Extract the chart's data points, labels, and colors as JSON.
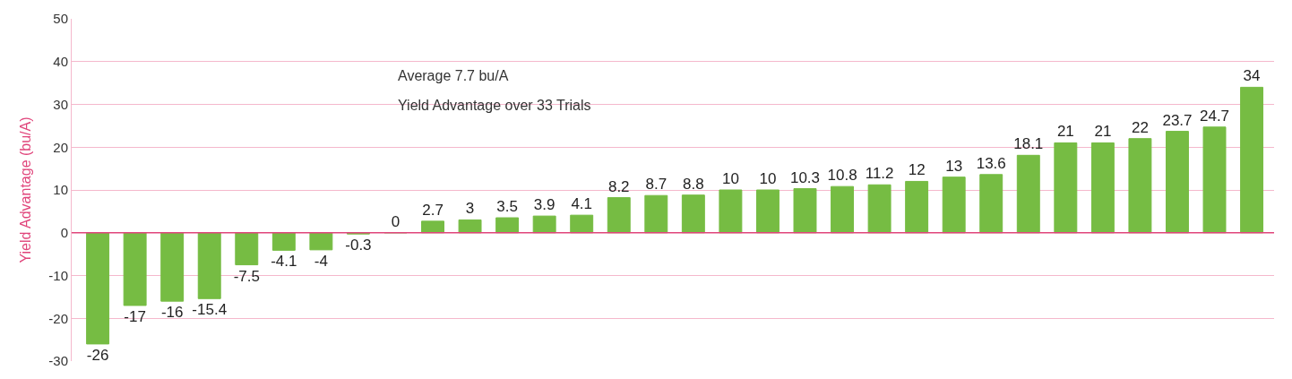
{
  "chart_data": {
    "type": "bar",
    "ylabel": "Yield Advantage (bu/A)",
    "annotations": [
      "Average 7.7 bu/A",
      "Yield Advantage over 33 Trials"
    ],
    "categories": [
      null,
      null,
      null,
      null,
      null,
      null,
      null,
      null,
      null,
      null,
      null,
      null,
      null,
      null,
      null,
      null,
      null,
      null,
      null,
      null,
      null,
      null,
      null,
      null,
      null,
      null,
      null,
      null,
      null,
      null,
      null,
      null
    ],
    "values": [
      -26,
      -17,
      -16,
      -15.4,
      -7.5,
      -4.1,
      -4,
      -0.3,
      0,
      2.7,
      3,
      3.5,
      3.9,
      4.1,
      8.2,
      8.7,
      8.8,
      10,
      10,
      10.3,
      10.8,
      11.2,
      12,
      13,
      13.6,
      18.1,
      21,
      21,
      22,
      23.7,
      24.7,
      34
    ],
    "color": "#76bc43",
    "data_labels": true,
    "ylim": [
      -30,
      50
    ],
    "yticks": [
      -30,
      -20,
      -10,
      0,
      10,
      20,
      30,
      40,
      50
    ],
    "grid": "y",
    "legend": false,
    "ref_lines": [
      {
        "axis": "y",
        "value": 0,
        "color": "#e0457b"
      }
    ]
  }
}
